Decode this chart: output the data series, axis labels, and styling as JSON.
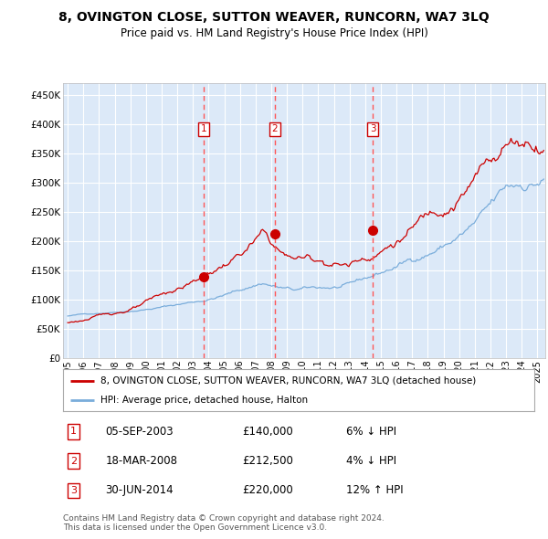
{
  "title": "8, OVINGTON CLOSE, SUTTON WEAVER, RUNCORN, WA7 3LQ",
  "subtitle": "Price paid vs. HM Land Registry's House Price Index (HPI)",
  "legend_label_red": "8, OVINGTON CLOSE, SUTTON WEAVER, RUNCORN, WA7 3LQ (detached house)",
  "legend_label_blue": "HPI: Average price, detached house, Halton",
  "transaction_dates_decimal": [
    2003.676,
    2008.211,
    2014.496
  ],
  "transaction_prices": [
    140000,
    212500,
    220000
  ],
  "yticks": [
    0,
    50000,
    100000,
    150000,
    200000,
    250000,
    300000,
    350000,
    400000,
    450000
  ],
  "ylim": [
    0,
    470000
  ],
  "xlim_start": 1994.7,
  "xlim_end": 2025.5,
  "bg_color": "#dce9f8",
  "grid_color": "#ffffff",
  "red_line_color": "#cc0000",
  "blue_line_color": "#7aaddb",
  "vline_color": "#ff5555",
  "box_color": "#cc0000",
  "footer": "Contains HM Land Registry data © Crown copyright and database right 2024.\nThis data is licensed under the Open Government Licence v3.0.",
  "xticks": [
    1995,
    1996,
    1997,
    1998,
    1999,
    2000,
    2001,
    2002,
    2003,
    2004,
    2005,
    2006,
    2007,
    2008,
    2009,
    2010,
    2011,
    2012,
    2013,
    2014,
    2015,
    2016,
    2017,
    2018,
    2019,
    2020,
    2021,
    2022,
    2023,
    2024,
    2025
  ],
  "row_data": [
    [
      "1",
      "05-SEP-2003",
      "£140,000",
      "6% ↓ HPI"
    ],
    [
      "2",
      "18-MAR-2008",
      "£212,500",
      "4% ↓ HPI"
    ],
    [
      "3",
      "30-JUN-2014",
      "£220,000",
      "12% ↑ HPI"
    ]
  ]
}
